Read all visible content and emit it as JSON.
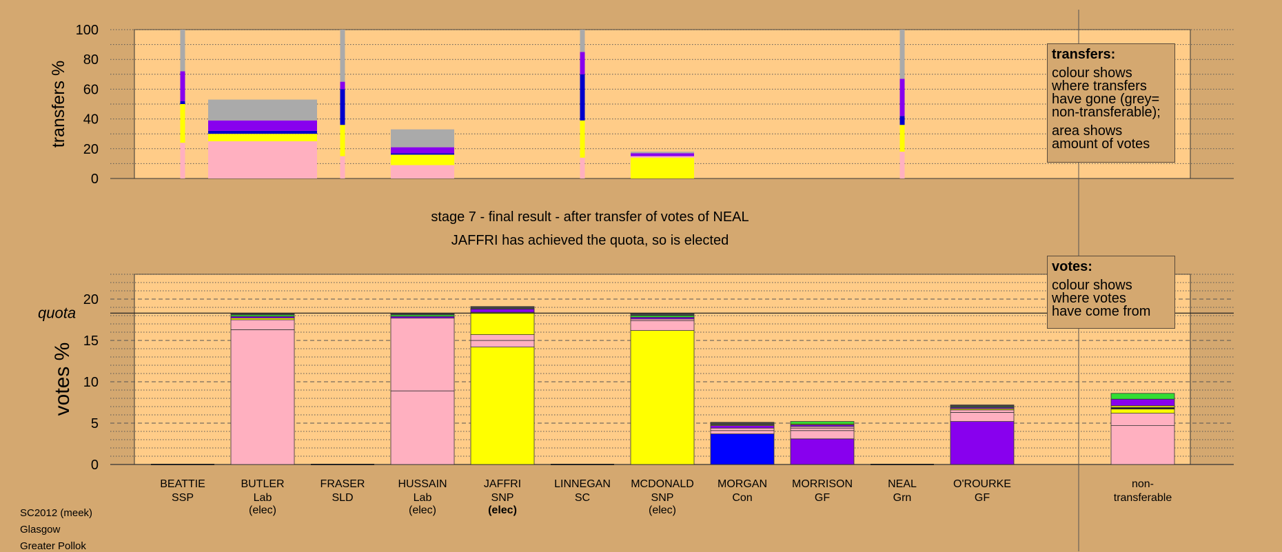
{
  "chart_data": [
    {
      "type": "bar",
      "name": "transfers",
      "ylabel": "transfers %",
      "ylim": [
        0,
        100
      ],
      "yticks": [
        0,
        20,
        40,
        60,
        80,
        100
      ],
      "bars": [
        {
          "candidate": "BEATTIE",
          "width": "thin",
          "segments": [
            {
              "color": "#FFB0C0",
              "from": 0,
              "to": 24
            },
            {
              "color": "#FFFF00",
              "from": 24,
              "to": 50
            },
            {
              "color": "#0000CC",
              "from": 50,
              "to": 52
            },
            {
              "color": "#8800EE",
              "from": 52,
              "to": 72
            },
            {
              "color": "#AAAAAA",
              "from": 72,
              "to": 100
            }
          ]
        },
        {
          "candidate": "BUTLER",
          "width": "wide",
          "segments": [
            {
              "color": "#FFB0C0",
              "from": 0,
              "to": 25
            },
            {
              "color": "#FFFF00",
              "from": 25,
              "to": 30
            },
            {
              "color": "#0000CC",
              "from": 30,
              "to": 32
            },
            {
              "color": "#8800EE",
              "from": 32,
              "to": 39
            },
            {
              "color": "#AAAAAA",
              "from": 39,
              "to": 53
            }
          ]
        },
        {
          "candidate": "FRASER",
          "width": "thin",
          "segments": [
            {
              "color": "#FFB0C0",
              "from": 0,
              "to": 15
            },
            {
              "color": "#FFFF00",
              "from": 15,
              "to": 36
            },
            {
              "color": "#0000CC",
              "from": 36,
              "to": 60
            },
            {
              "color": "#8800EE",
              "from": 60,
              "to": 65
            },
            {
              "color": "#AAAAAA",
              "from": 65,
              "to": 100
            }
          ]
        },
        {
          "candidate": "HUSSAIN",
          "width": "medium",
          "segments": [
            {
              "color": "#FFB0C0",
              "from": 0,
              "to": 9
            },
            {
              "color": "#FFFF00",
              "from": 9,
              "to": 16
            },
            {
              "color": "#0000CC",
              "from": 16,
              "to": 17
            },
            {
              "color": "#8800EE",
              "from": 17,
              "to": 21
            },
            {
              "color": "#AAAAAA",
              "from": 21,
              "to": 33
            }
          ]
        },
        {
          "candidate": "LINNEGAN",
          "width": "thin",
          "segments": [
            {
              "color": "#FFB0C0",
              "from": 0,
              "to": 14
            },
            {
              "color": "#FFFF00",
              "from": 14,
              "to": 39
            },
            {
              "color": "#0000CC",
              "from": 39,
              "to": 70
            },
            {
              "color": "#8800EE",
              "from": 70,
              "to": 85
            },
            {
              "color": "#AAAAAA",
              "from": 85,
              "to": 100
            }
          ]
        },
        {
          "candidate": "MCDONALD",
          "width": "medium",
          "segments": [
            {
              "color": "#FFFF00",
              "from": 0,
              "to": 14
            },
            {
              "color": "#FFB0C0",
              "from": 14,
              "to": 15
            },
            {
              "color": "#8800EE",
              "from": 15,
              "to": 17
            },
            {
              "color": "#AAAAAA",
              "from": 17,
              "to": 18
            }
          ]
        },
        {
          "candidate": "NEAL",
          "width": "thin",
          "segments": [
            {
              "color": "#FFB0C0",
              "from": 0,
              "to": 18
            },
            {
              "color": "#FFFF00",
              "from": 18,
              "to": 36
            },
            {
              "color": "#0000CC",
              "from": 36,
              "to": 42
            },
            {
              "color": "#8800EE",
              "from": 42,
              "to": 67
            },
            {
              "color": "#AAAAAA",
              "from": 67,
              "to": 100
            }
          ]
        }
      ]
    },
    {
      "type": "bar",
      "name": "votes",
      "ylabel": "votes %",
      "ylim": [
        0,
        23
      ],
      "yticks": [
        0,
        5,
        10,
        15,
        20
      ],
      "quota": 18.3,
      "quota_label": "quota",
      "bars": [
        {
          "name": "BEATTIE",
          "party": "SSP",
          "elec": "",
          "segments": []
        },
        {
          "name": "BUTLER",
          "party": "Lab",
          "elec": "(elec)",
          "segments": [
            {
              "color": "#FFB0C0",
              "from": 0,
              "to": 16.3
            },
            {
              "color": "#FFB0C0",
              "from": 16.3,
              "to": 17.5
            },
            {
              "color": "#FFFF00",
              "from": 17.5,
              "to": 17.7
            },
            {
              "color": "#8800EE",
              "from": 17.7,
              "to": 17.9
            },
            {
              "color": "#33DD33",
              "from": 17.9,
              "to": 18.1
            },
            {
              "color": "#444444",
              "from": 18.1,
              "to": 18.3
            }
          ]
        },
        {
          "name": "FRASER",
          "party": "SLD",
          "elec": "",
          "segments": []
        },
        {
          "name": "HUSSAIN",
          "party": "Lab",
          "elec": "(elec)",
          "segments": [
            {
              "color": "#FFB0C0",
              "from": 0,
              "to": 8.9
            },
            {
              "color": "#FFB0C0",
              "from": 8.9,
              "to": 17.7
            },
            {
              "color": "#8800EE",
              "from": 17.7,
              "to": 17.9
            },
            {
              "color": "#33DD33",
              "from": 17.9,
              "to": 18.1
            },
            {
              "color": "#444444",
              "from": 18.1,
              "to": 18.3
            }
          ]
        },
        {
          "name": "JAFFRI",
          "party": "SNP",
          "elec": "(elec)",
          "elected_now": true,
          "segments": [
            {
              "color": "#FFFF00",
              "from": 0,
              "to": 14.2
            },
            {
              "color": "#FFB0C0",
              "from": 14.2,
              "to": 15.0
            },
            {
              "color": "#FFB0C0",
              "from": 15.0,
              "to": 15.7
            },
            {
              "color": "#FFFF00",
              "from": 15.7,
              "to": 18.4
            },
            {
              "color": "#8800EE",
              "from": 18.4,
              "to": 18.8
            },
            {
              "color": "#444444",
              "from": 18.8,
              "to": 19.1
            }
          ]
        },
        {
          "name": "LINNEGAN",
          "party": "SC",
          "elec": "",
          "segments": []
        },
        {
          "name": "MCDONALD",
          "party": "SNP",
          "elec": "(elec)",
          "segments": [
            {
              "color": "#FFFF00",
              "from": 0,
              "to": 16.2
            },
            {
              "color": "#FFB0C0",
              "from": 16.2,
              "to": 17.4
            },
            {
              "color": "#FFB0C0",
              "from": 17.4,
              "to": 17.6
            },
            {
              "color": "#8800EE",
              "from": 17.6,
              "to": 17.8
            },
            {
              "color": "#33DD33",
              "from": 17.8,
              "to": 18.0
            },
            {
              "color": "#444444",
              "from": 18.0,
              "to": 18.3
            }
          ]
        },
        {
          "name": "MORGAN",
          "party": "Con",
          "elec": "",
          "segments": [
            {
              "color": "#0000FF",
              "from": 0,
              "to": 3.7
            },
            {
              "color": "#FFB0C0",
              "from": 3.7,
              "to": 4.1
            },
            {
              "color": "#FFB0C0",
              "from": 4.1,
              "to": 4.4
            },
            {
              "color": "#8800EE",
              "from": 4.4,
              "to": 4.7
            },
            {
              "color": "#FFFF00",
              "from": 4.7,
              "to": 4.8
            },
            {
              "color": "#444444",
              "from": 4.8,
              "to": 5.1
            }
          ]
        },
        {
          "name": "MORRISON",
          "party": "GF",
          "elec": "",
          "segments": [
            {
              "color": "#8800EE",
              "from": 0,
              "to": 3.1
            },
            {
              "color": "#FFB0C0",
              "from": 3.1,
              "to": 4.1
            },
            {
              "color": "#FFB0C0",
              "from": 4.1,
              "to": 4.4
            },
            {
              "color": "#FFB0C0",
              "from": 4.4,
              "to": 4.6
            },
            {
              "color": "#8800EE",
              "from": 4.6,
              "to": 4.8
            },
            {
              "color": "#FFFF00",
              "from": 4.8,
              "to": 4.9
            },
            {
              "color": "#33DD33",
              "from": 4.9,
              "to": 5.2
            }
          ]
        },
        {
          "name": "NEAL",
          "party": "Grn",
          "elec": "",
          "segments": []
        },
        {
          "name": "O'ROURKE",
          "party": "GF",
          "elec": "",
          "segments": [
            {
              "color": "#8800EE",
              "from": 0,
              "to": 5.2
            },
            {
              "color": "#FFB0C0",
              "from": 5.2,
              "to": 6.3
            },
            {
              "color": "#FFB0C0",
              "from": 6.3,
              "to": 6.6
            },
            {
              "color": "#FFFF00",
              "from": 6.6,
              "to": 6.75
            },
            {
              "color": "#8800EE",
              "from": 6.75,
              "to": 6.9
            },
            {
              "color": "#33DD33",
              "from": 6.9,
              "to": 7.0
            },
            {
              "color": "#444444",
              "from": 7.0,
              "to": 7.2
            }
          ]
        },
        {
          "name": "non-",
          "party": "transferable",
          "elec": "",
          "segments": [
            {
              "color": "#FFB0C0",
              "from": 0,
              "to": 4.7
            },
            {
              "color": "#FFB0C0",
              "from": 4.7,
              "to": 6.2
            },
            {
              "color": "#FFFF00",
              "from": 6.2,
              "to": 6.7
            },
            {
              "color": "#222222",
              "from": 6.7,
              "to": 6.9
            },
            {
              "color": "#FFFF00",
              "from": 6.9,
              "to": 7.1
            },
            {
              "color": "#8800EE",
              "from": 7.1,
              "to": 7.9
            },
            {
              "color": "#33DD33",
              "from": 7.9,
              "to": 8.6
            }
          ]
        }
      ]
    }
  ],
  "headline": {
    "stage": "stage 7 - final result - after transfer of votes of NEAL",
    "result": "JAFFRI has achieved the quota, so is elected"
  },
  "legends": {
    "transfers": {
      "title": "transfers:",
      "lines1": [
        "colour shows",
        "where transfers",
        "have gone (grey=",
        "non-transferable);"
      ],
      "lines2": [
        "area shows",
        "amount of votes"
      ]
    },
    "votes": {
      "title": "votes:",
      "lines": [
        "colour shows",
        "where votes",
        "have come from"
      ]
    }
  },
  "info": {
    "election": "SC2012 (meek)",
    "city": "Glasgow",
    "ward": "Greater Pollok"
  },
  "colors": {
    "background": "#D4A870",
    "plot_area": "#FFCC88"
  }
}
